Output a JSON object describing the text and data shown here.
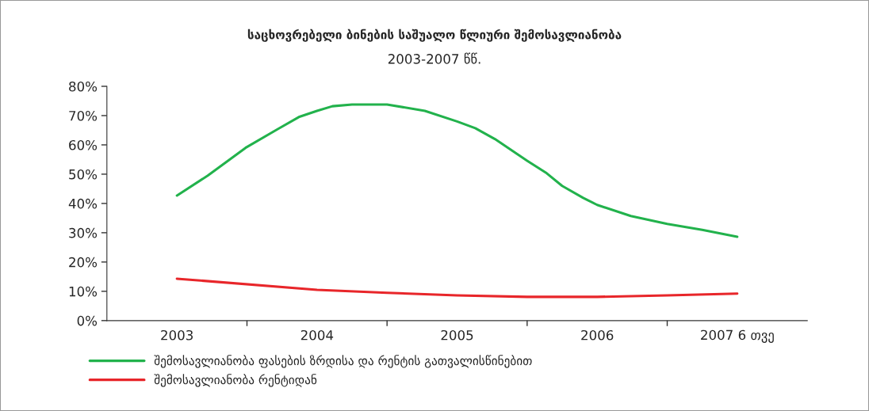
{
  "chart_data": {
    "type": "line",
    "title": "საცხოვრებელი ბინების საშუალო წლიური შემოსავლიანობა",
    "subtitle": "2003-2007 წწ.",
    "xlim": [
      2002.5,
      2007.5
    ],
    "xticks": [
      {
        "value": 2003,
        "label": "2003"
      },
      {
        "value": 2003.5,
        "label": null
      },
      {
        "value": 2004,
        "label": "2004"
      },
      {
        "value": 2004.5,
        "label": null
      },
      {
        "value": 2005,
        "label": "2005"
      },
      {
        "value": 2005.5,
        "label": null
      },
      {
        "value": 2006,
        "label": "2006"
      },
      {
        "value": 2006.5,
        "label": null
      },
      {
        "value": 2007,
        "label": "2007 6 თვე"
      }
    ],
    "ylim": [
      0,
      80
    ],
    "yticks": [
      {
        "value": 0,
        "label": "0%"
      },
      {
        "value": 10,
        "label": "10%"
      },
      {
        "value": 20,
        "label": "20%"
      },
      {
        "value": 30,
        "label": "30%"
      },
      {
        "value": 40,
        "label": "40%"
      },
      {
        "value": 50,
        "label": "50%"
      },
      {
        "value": 60,
        "label": "60%"
      },
      {
        "value": 70,
        "label": "70%"
      },
      {
        "value": 80,
        "label": "80%"
      }
    ],
    "grid": false,
    "legend": "bottom",
    "line_style": "solid",
    "marker": "none",
    "series": [
      {
        "name": "შემოსავლიანობა ფასების ზრდისა და რენტის გათვალისწინებით",
        "color": "#22b24c",
        "x": [
          2003,
          2003.22,
          2003.49,
          2003.72,
          2003.87,
          2004,
          2004.11,
          2004.25,
          2004.5,
          2004.77,
          2005,
          2005.13,
          2005.27,
          2005.5,
          2005.64,
          2005.75,
          2005.9,
          2006,
          2006.24,
          2006.5,
          2006.75,
          2007
        ],
        "values": [
          42.7,
          49.5,
          59,
          65.4,
          69.5,
          71.6,
          73.2,
          73.8,
          73.8,
          71.6,
          68,
          65.7,
          62,
          54.6,
          50.3,
          46,
          41.9,
          39.5,
          35.7,
          33,
          31,
          28.6
        ]
      },
      {
        "name": "შემოსავლიანობა რენტიდან",
        "color": "#e8262a",
        "x": [
          2003,
          2004,
          2004.5,
          2005,
          2005.5,
          2006,
          2006.5,
          2007
        ],
        "values": [
          14.3,
          10.5,
          9.5,
          8.6,
          8.1,
          8.1,
          8.6,
          9.2
        ]
      }
    ]
  }
}
